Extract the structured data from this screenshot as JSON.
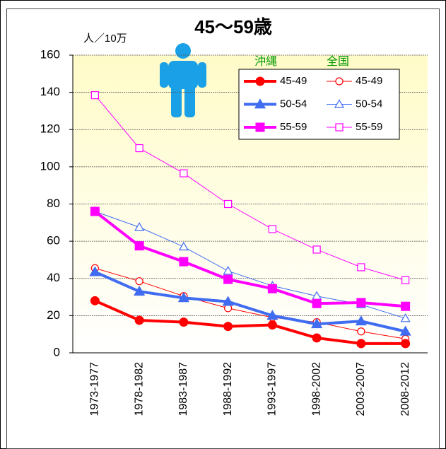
{
  "chart_data": {
    "type": "line",
    "title": "45〜59歳",
    "y_unit_label": "人／10万",
    "categories": [
      "1973-1977",
      "1978-1982",
      "1983-1987",
      "1988-1992",
      "1993-1997",
      "1998-2002",
      "2003-2007",
      "2008-2012"
    ],
    "legend": {
      "columns": [
        {
          "name": "沖縄",
          "color": "#009900"
        },
        {
          "name": "全国",
          "color": "#009900"
        }
      ]
    },
    "series": [
      {
        "name": "45-49",
        "color": "#ff0000",
        "marker": "circle",
        "filled": true,
        "line_width": 4,
        "values": [
          28,
          17.5,
          16.5,
          14.2,
          15,
          8,
          5,
          5
        ]
      },
      {
        "name": "50-54",
        "color": "#3f6cf0",
        "marker": "triangle",
        "filled": true,
        "line_width": 4,
        "values": [
          43.5,
          33,
          29.5,
          27.5,
          20,
          15.5,
          17,
          11.5
        ]
      },
      {
        "name": "55-59",
        "color": "#ff00ff",
        "marker": "square",
        "filled": true,
        "line_width": 4,
        "values": [
          76,
          57.5,
          49,
          39.5,
          34.5,
          26.5,
          27,
          25
        ]
      },
      {
        "name": "45-49",
        "color": "#ff0000",
        "marker": "circle",
        "filled": false,
        "line_width": 1,
        "values": [
          45.5,
          38.5,
          30.5,
          24,
          19,
          16.5,
          11.5,
          7.5
        ]
      },
      {
        "name": "50-54",
        "color": "#3f6cf0",
        "marker": "triangle",
        "filled": false,
        "line_width": 1,
        "values": [
          76,
          67.5,
          57,
          44,
          36,
          30.5,
          26,
          18.5
        ]
      },
      {
        "name": "55-59",
        "color": "#ff00ff",
        "marker": "square",
        "filled": false,
        "line_width": 1,
        "values": [
          138.5,
          110,
          96.5,
          80,
          66.5,
          55.5,
          46,
          39
        ]
      }
    ],
    "ylim": [
      0,
      160
    ],
    "yticks": [
      0,
      20,
      40,
      60,
      80,
      100,
      120,
      140,
      160
    ],
    "grid": true
  }
}
